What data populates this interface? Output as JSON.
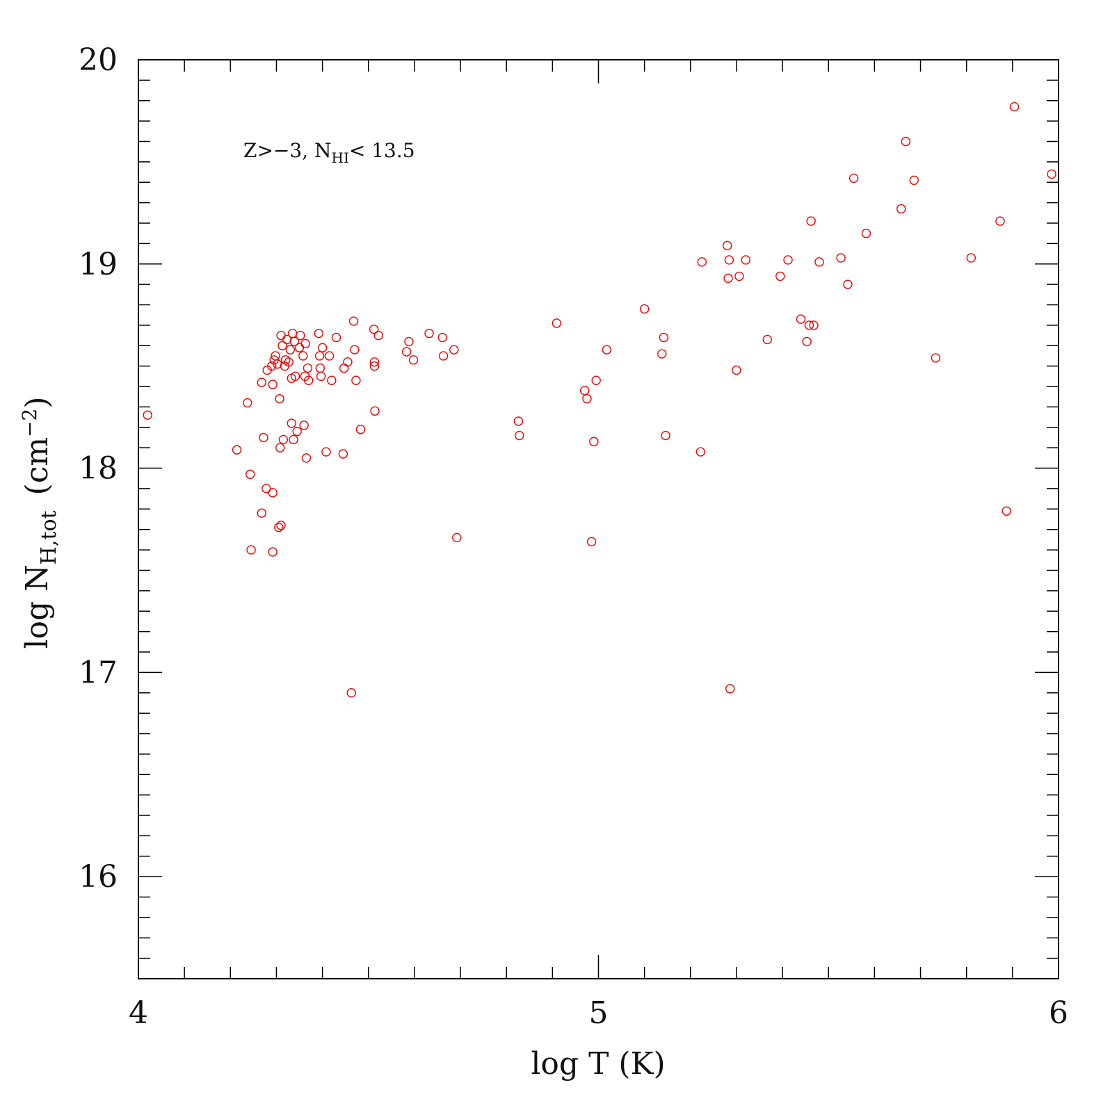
{
  "chart_data": {
    "type": "scatter",
    "xlabel": "log T (K)",
    "ylabel": {
      "main": "log N",
      "sub": "H,tot",
      "units": "(cm",
      "units_exp": "−2",
      "units_close": ")"
    },
    "xlim": [
      4,
      6
    ],
    "ylim": [
      15.5,
      20
    ],
    "x_ticks": [
      "4",
      "5",
      "6"
    ],
    "y_ticks": [
      "16",
      "17",
      "18",
      "19",
      "20"
    ],
    "x_tick_values": [
      4,
      5,
      6
    ],
    "y_tick_values": [
      16,
      17,
      18,
      19,
      20
    ],
    "x_minor_step": 0.1,
    "y_minor_step": 0.1,
    "grid": false,
    "marker": "open-circle",
    "annotation": {
      "main": "Z>−3, N",
      "sub": "HI",
      "tail": "< 13.5"
    },
    "series": [
      {
        "color": "#ee0000",
        "points": [
          [
            4.02,
            18.26
          ],
          [
            4.214,
            18.09
          ],
          [
            4.237,
            18.32
          ],
          [
            4.243,
            17.97
          ],
          [
            4.245,
            17.6
          ],
          [
            4.268,
            17.78
          ],
          [
            4.272,
            18.15
          ],
          [
            4.278,
            17.9
          ],
          [
            4.268,
            18.42
          ],
          [
            4.28,
            18.48
          ],
          [
            4.29,
            18.5
          ],
          [
            4.292,
            18.41
          ],
          [
            4.295,
            18.53
          ],
          [
            4.298,
            18.55
          ],
          [
            4.292,
            17.88
          ],
          [
            4.292,
            17.59
          ],
          [
            4.302,
            18.51
          ],
          [
            4.305,
            17.71
          ],
          [
            4.31,
            17.72
          ],
          [
            4.307,
            18.34
          ],
          [
            4.308,
            18.1
          ],
          [
            4.31,
            18.65
          ],
          [
            4.313,
            18.6
          ],
          [
            4.315,
            18.14
          ],
          [
            4.318,
            18.5
          ],
          [
            4.32,
            18.53
          ],
          [
            4.323,
            18.63
          ],
          [
            4.327,
            18.52
          ],
          [
            4.33,
            18.58
          ],
          [
            4.333,
            18.44
          ],
          [
            4.333,
            18.22
          ],
          [
            4.335,
            18.66
          ],
          [
            4.337,
            18.14
          ],
          [
            4.339,
            18.62
          ],
          [
            4.341,
            18.45
          ],
          [
            4.345,
            18.18
          ],
          [
            4.35,
            18.59
          ],
          [
            4.352,
            18.65
          ],
          [
            4.358,
            18.55
          ],
          [
            4.36,
            18.21
          ],
          [
            4.362,
            18.45
          ],
          [
            4.363,
            18.61
          ],
          [
            4.365,
            18.05
          ],
          [
            4.368,
            18.49
          ],
          [
            4.37,
            18.43
          ],
          [
            4.392,
            18.66
          ],
          [
            4.394,
            18.55
          ],
          [
            4.395,
            18.49
          ],
          [
            4.397,
            18.45
          ],
          [
            4.4,
            18.59
          ],
          [
            4.408,
            18.08
          ],
          [
            4.415,
            18.55
          ],
          [
            4.42,
            18.43
          ],
          [
            4.43,
            18.64
          ],
          [
            4.445,
            18.07
          ],
          [
            4.447,
            18.49
          ],
          [
            4.455,
            18.52
          ],
          [
            4.463,
            16.9
          ],
          [
            4.468,
            18.72
          ],
          [
            4.47,
            18.58
          ],
          [
            4.473,
            18.43
          ],
          [
            4.483,
            18.19
          ],
          [
            4.512,
            18.68
          ],
          [
            4.513,
            18.52
          ],
          [
            4.513,
            18.5
          ],
          [
            4.514,
            18.28
          ],
          [
            4.522,
            18.65
          ],
          [
            4.583,
            18.57
          ],
          [
            4.588,
            18.62
          ],
          [
            4.598,
            18.53
          ],
          [
            4.632,
            18.66
          ],
          [
            4.661,
            18.64
          ],
          [
            4.663,
            18.55
          ],
          [
            4.686,
            18.58
          ],
          [
            4.692,
            17.66
          ],
          [
            4.826,
            18.23
          ],
          [
            4.828,
            18.16
          ],
          [
            4.909,
            18.71
          ],
          [
            4.97,
            18.38
          ],
          [
            4.975,
            18.34
          ],
          [
            4.985,
            17.64
          ],
          [
            4.99,
            18.13
          ],
          [
            4.995,
            18.43
          ],
          [
            5.018,
            18.58
          ],
          [
            5.1,
            18.78
          ],
          [
            5.138,
            18.56
          ],
          [
            5.142,
            18.64
          ],
          [
            5.146,
            18.16
          ],
          [
            5.222,
            18.08
          ],
          [
            5.225,
            19.01
          ],
          [
            5.28,
            19.09
          ],
          [
            5.282,
            18.93
          ],
          [
            5.284,
            19.02
          ],
          [
            5.286,
            16.92
          ],
          [
            5.3,
            18.48
          ],
          [
            5.306,
            18.94
          ],
          [
            5.32,
            19.02
          ],
          [
            5.367,
            18.63
          ],
          [
            5.395,
            18.94
          ],
          [
            5.412,
            19.02
          ],
          [
            5.44,
            18.73
          ],
          [
            5.453,
            18.62
          ],
          [
            5.458,
            18.7
          ],
          [
            5.462,
            19.21
          ],
          [
            5.468,
            18.7
          ],
          [
            5.48,
            19.01
          ],
          [
            5.527,
            19.03
          ],
          [
            5.542,
            18.9
          ],
          [
            5.555,
            19.42
          ],
          [
            5.582,
            19.15
          ],
          [
            5.658,
            19.27
          ],
          [
            5.668,
            19.6
          ],
          [
            5.686,
            19.41
          ],
          [
            5.733,
            18.54
          ],
          [
            5.81,
            19.03
          ],
          [
            5.873,
            19.21
          ],
          [
            5.887,
            17.79
          ],
          [
            5.904,
            19.77
          ],
          [
            5.985,
            19.44
          ]
        ]
      }
    ]
  }
}
